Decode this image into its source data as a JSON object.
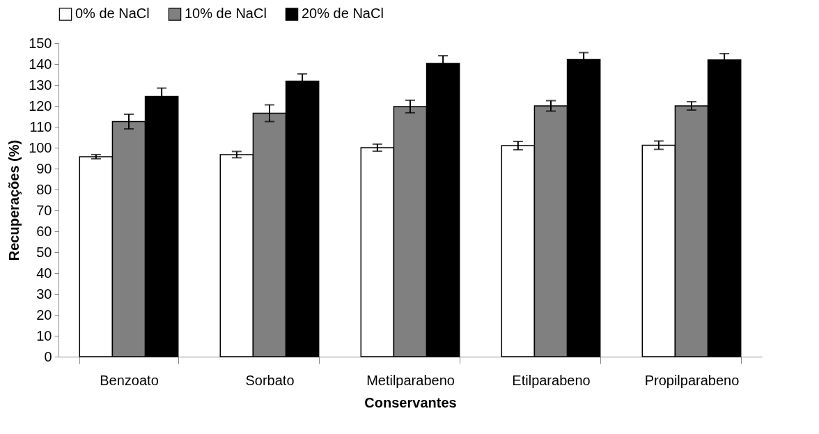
{
  "chart_data": {
    "type": "bar",
    "xlabel": "Conservantes",
    "ylabel": "Recuperações (%)",
    "categories": [
      "Benzoato",
      "Sorbato",
      "Metilparabeno",
      "Etilparabeno",
      "Propilparabeno"
    ],
    "series": [
      {
        "name": "0% de NaCl",
        "color": "#ffffff",
        "values": [
          95.7,
          96.7,
          100,
          101,
          101.2
        ],
        "errors": [
          1,
          1.5,
          1.7,
          2,
          2
        ]
      },
      {
        "name": "10% de NaCl",
        "color": "#808080",
        "values": [
          112.5,
          116.5,
          119.7,
          120,
          120
        ],
        "errors": [
          3.5,
          4,
          3,
          2.5,
          2
        ]
      },
      {
        "name": "20% de NaCl",
        "color": "#000000",
        "values": [
          124.5,
          131.8,
          140.3,
          142.2,
          142
        ],
        "errors": [
          4,
          3.5,
          3.7,
          3.3,
          3
        ]
      }
    ],
    "ylim": [
      0,
      150
    ],
    "yticks": [
      0,
      10,
      20,
      30,
      40,
      50,
      60,
      70,
      80,
      90,
      100,
      110,
      120,
      130,
      140,
      150
    ],
    "grid": false,
    "legend": "top"
  }
}
